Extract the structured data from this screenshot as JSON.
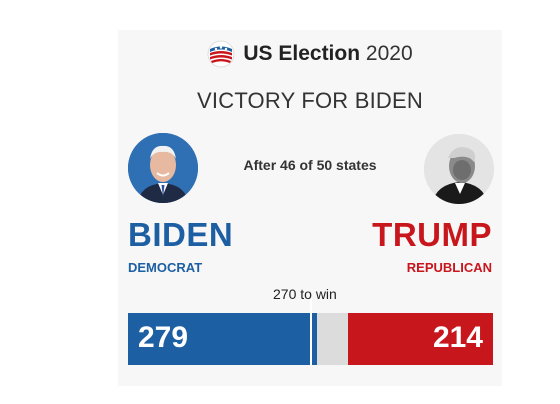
{
  "header": {
    "brand_bold": "US Election",
    "brand_year": "2020",
    "logo_icon": "us-flag-badge-icon"
  },
  "headline": "VICTORY FOR BIDEN",
  "status": "After 46 of 50 states",
  "candidates": {
    "left": {
      "name": "BIDEN",
      "party": "DEMOCRAT",
      "electoral_votes": "279",
      "color": "#1d5fa3"
    },
    "right": {
      "name": "TRUMP",
      "party": "REPUBLICAN",
      "electoral_votes": "214",
      "color": "#c8161d"
    }
  },
  "bar": {
    "threshold_label": "270 to win",
    "threshold_value": 270,
    "total_votes": 538,
    "dem_votes": 279,
    "rep_votes": 214,
    "uncalled_color": "#dcdcdc"
  }
}
